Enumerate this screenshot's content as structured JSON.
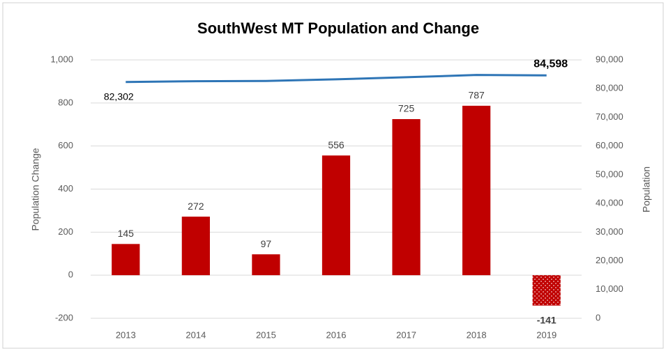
{
  "chart_data": {
    "type": "bar_line",
    "title": "SouthWest MT Population and Change",
    "y_label": "Population Change",
    "y2_label": "Population",
    "categories": [
      "2013",
      "2014",
      "2015",
      "2016",
      "2017",
      "2018",
      "2019"
    ],
    "series": [
      {
        "name": "Population Change",
        "type": "bar",
        "color": "#c00000",
        "values": [
          145,
          272,
          97,
          556,
          725,
          787,
          -141
        ]
      },
      {
        "name": "Population",
        "type": "line",
        "axis": "y2",
        "color": "#2e75b6",
        "values": [
          82302,
          82574,
          82671,
          83227,
          83952,
          84739,
          84598
        ],
        "value_labels": [
          "82,302",
          null,
          null,
          null,
          null,
          null,
          "84,598"
        ]
      }
    ],
    "ylim": [
      -200,
      1000
    ],
    "yticks": [
      -200,
      0,
      200,
      400,
      {
        "value": 600,
        "label": "600"
      },
      800,
      {
        "value": 1000,
        "label": "1,000"
      }
    ],
    "y2lim": [
      0,
      90000
    ],
    "y2ticks": [
      0,
      {
        "value": 10000,
        "label": "10,000"
      },
      {
        "value": 20000,
        "label": "20,000"
      },
      {
        "value": 30000,
        "label": "30,000"
      },
      {
        "value": 40000,
        "label": "40,000"
      },
      {
        "value": 50000,
        "label": "50,000"
      },
      {
        "value": 60000,
        "label": "60,000"
      },
      {
        "value": 70000,
        "label": "70,000"
      },
      {
        "value": 80000,
        "label": "80,000"
      },
      {
        "value": 90000,
        "label": "90,000"
      }
    ],
    "grid": true
  }
}
